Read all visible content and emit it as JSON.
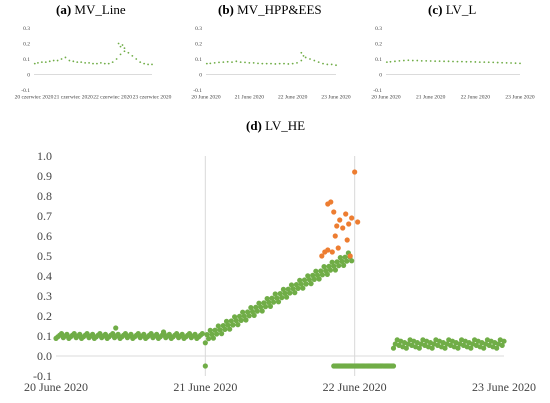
{
  "chart_data": [
    {
      "type": "scatter",
      "panel_letter": "(a)",
      "title": "MV_Line",
      "yticks": [
        "0.3",
        "0.2",
        "0.1",
        "0",
        "-0.1"
      ],
      "xticks": [
        "20 czerwiec 2020",
        "21 czerwiec 2020",
        "22 czerwiec 2020",
        "23 czerwiec 2020"
      ],
      "ylim": [
        -0.1,
        0.3
      ],
      "grid": false,
      "legend": "none",
      "colors": {
        "main": "#70ad47",
        "highlight": "#ed7d31"
      },
      "series": [
        {
          "x": [
            0.02,
            0.1,
            0.2,
            0.3,
            0.4,
            0.5,
            0.6,
            0.7,
            0.8,
            0.9,
            1.0,
            1.1,
            1.2,
            1.3,
            1.4,
            1.5,
            1.6,
            1.7,
            1.8,
            1.9,
            2.0,
            2.1,
            2.2,
            2.3,
            2.4,
            2.5,
            2.6,
            2.7,
            2.8,
            2.9,
            3.0
          ],
          "y": [
            0.07,
            0.075,
            0.08,
            0.08,
            0.085,
            0.09,
            0.09,
            0.1,
            0.11,
            0.09,
            0.085,
            0.08,
            0.08,
            0.075,
            0.075,
            0.07,
            0.07,
            0.075,
            0.07,
            0.07,
            0.08,
            0.1,
            0.13,
            0.15,
            0.14,
            0.12,
            0.1,
            0.08,
            0.07,
            0.065,
            0.065
          ]
        },
        {
          "x": [
            2.15,
            2.2,
            2.25,
            2.3
          ],
          "y": [
            0.2,
            0.18,
            0.19,
            0.17
          ]
        }
      ]
    },
    {
      "type": "scatter",
      "panel_letter": "(b)",
      "title": "MV_HPP&EES",
      "yticks": [
        "0.3",
        "0.2",
        "0.1",
        "0",
        "-0.1"
      ],
      "xticks": [
        "20 June 2020",
        "21 June 2020",
        "22 June 2020",
        "23 June 2020"
      ],
      "ylim": [
        -0.1,
        0.3
      ],
      "grid": false,
      "legend": "none",
      "colors": {
        "main": "#70ad47",
        "highlight": "#ed7d31"
      },
      "series": [
        {
          "x": [
            0.02,
            0.1,
            0.2,
            0.3,
            0.4,
            0.5,
            0.6,
            0.7,
            0.8,
            0.9,
            1.0,
            1.1,
            1.2,
            1.3,
            1.4,
            1.5,
            1.6,
            1.7,
            1.8,
            1.9,
            2.0,
            2.1,
            2.2,
            2.3,
            2.4,
            2.5,
            2.6,
            2.7,
            2.8,
            2.9,
            3.0
          ],
          "y": [
            0.07,
            0.072,
            0.075,
            0.078,
            0.08,
            0.082,
            0.08,
            0.085,
            0.08,
            0.078,
            0.075,
            0.075,
            0.072,
            0.07,
            0.07,
            0.07,
            0.068,
            0.07,
            0.07,
            0.068,
            0.07,
            0.075,
            0.09,
            0.11,
            0.1,
            0.09,
            0.08,
            0.07,
            0.065,
            0.065,
            0.06
          ]
        },
        {
          "x": [
            2.2,
            2.25
          ],
          "y": [
            0.14,
            0.12
          ]
        }
      ]
    },
    {
      "type": "scatter",
      "panel_letter": "(c)",
      "title": "LV_L",
      "yticks": [
        "0.3",
        "0.2",
        "0.1",
        "0",
        "-0.1"
      ],
      "xticks": [
        "20 June 2020",
        "21 June 2020",
        "22 June 2020",
        "23 June 2020"
      ],
      "ylim": [
        -0.1,
        0.3
      ],
      "grid": false,
      "legend": "none",
      "colors": {
        "main": "#70ad47",
        "highlight": "#ed7d31"
      },
      "series": [
        {
          "x": [
            0.02,
            0.1,
            0.2,
            0.3,
            0.4,
            0.5,
            0.6,
            0.7,
            0.8,
            0.9,
            1.0,
            1.1,
            1.2,
            1.3,
            1.4,
            1.5,
            1.6,
            1.7,
            1.8,
            1.9,
            2.0,
            2.1,
            2.2,
            2.3,
            2.4,
            2.5,
            2.6,
            2.7,
            2.8,
            2.9,
            3.0
          ],
          "y": [
            0.08,
            0.082,
            0.085,
            0.088,
            0.09,
            0.092,
            0.09,
            0.09,
            0.088,
            0.088,
            0.087,
            0.086,
            0.086,
            0.085,
            0.085,
            0.084,
            0.083,
            0.083,
            0.082,
            0.082,
            0.081,
            0.08,
            0.08,
            0.079,
            0.078,
            0.077,
            0.076,
            0.075,
            0.074,
            0.073,
            0.072
          ]
        }
      ]
    },
    {
      "type": "scatter",
      "panel_letter": "(d)",
      "title": "LV_HE",
      "yticks": [
        "1.0",
        "0.9",
        "0.8",
        "0.7",
        "0.6",
        "0.5",
        "0.4",
        "0.3",
        "0.2",
        "0.1",
        "0.0",
        "-0.1"
      ],
      "xticks": [
        "20 June 2020",
        "21 June 2020",
        "22 June 2020",
        "23 June 2020"
      ],
      "xlim": [
        0,
        3
      ],
      "ylim": [
        -0.1,
        1.0
      ],
      "grid": true,
      "legend": "none",
      "colors": {
        "main": "#70ad47",
        "highlight": "#ed7d31"
      },
      "series": [
        {
          "name": "",
          "x": [],
          "y": []
        },
        {
          "name": "",
          "x": [
            1.78,
            1.8,
            1.82,
            1.84,
            1.86,
            1.88,
            1.82,
            1.85,
            1.87,
            1.89,
            1.9,
            1.92,
            1.94,
            1.96,
            1.98,
            2.0,
            2.02,
            1.95,
            1.97
          ],
          "y": [
            0.5,
            0.52,
            0.76,
            0.77,
            0.72,
            0.65,
            0.53,
            0.52,
            0.6,
            0.54,
            0.68,
            0.64,
            0.71,
            0.66,
            0.69,
            0.92,
            0.67,
            0.58,
            0.5
          ]
        }
      ]
    }
  ]
}
